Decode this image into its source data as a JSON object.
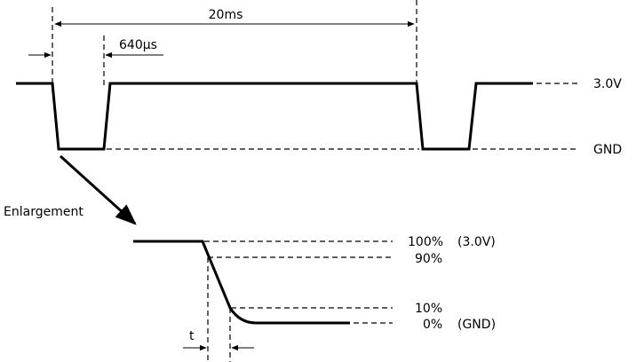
{
  "diagram": {
    "period_label": "20ms",
    "pulse_width_label": "640μs",
    "level_high_label": "3.0V",
    "level_low_label": "GND",
    "enlargement_label": "Enlargement",
    "pct_100_label": "100%",
    "pct_100_value": "(3.0V)",
    "pct_90_label": "90%",
    "pct_10_label": "10%",
    "pct_0_label": "0%",
    "pct_0_value": "(GND)",
    "fall_time_label": "t"
  }
}
